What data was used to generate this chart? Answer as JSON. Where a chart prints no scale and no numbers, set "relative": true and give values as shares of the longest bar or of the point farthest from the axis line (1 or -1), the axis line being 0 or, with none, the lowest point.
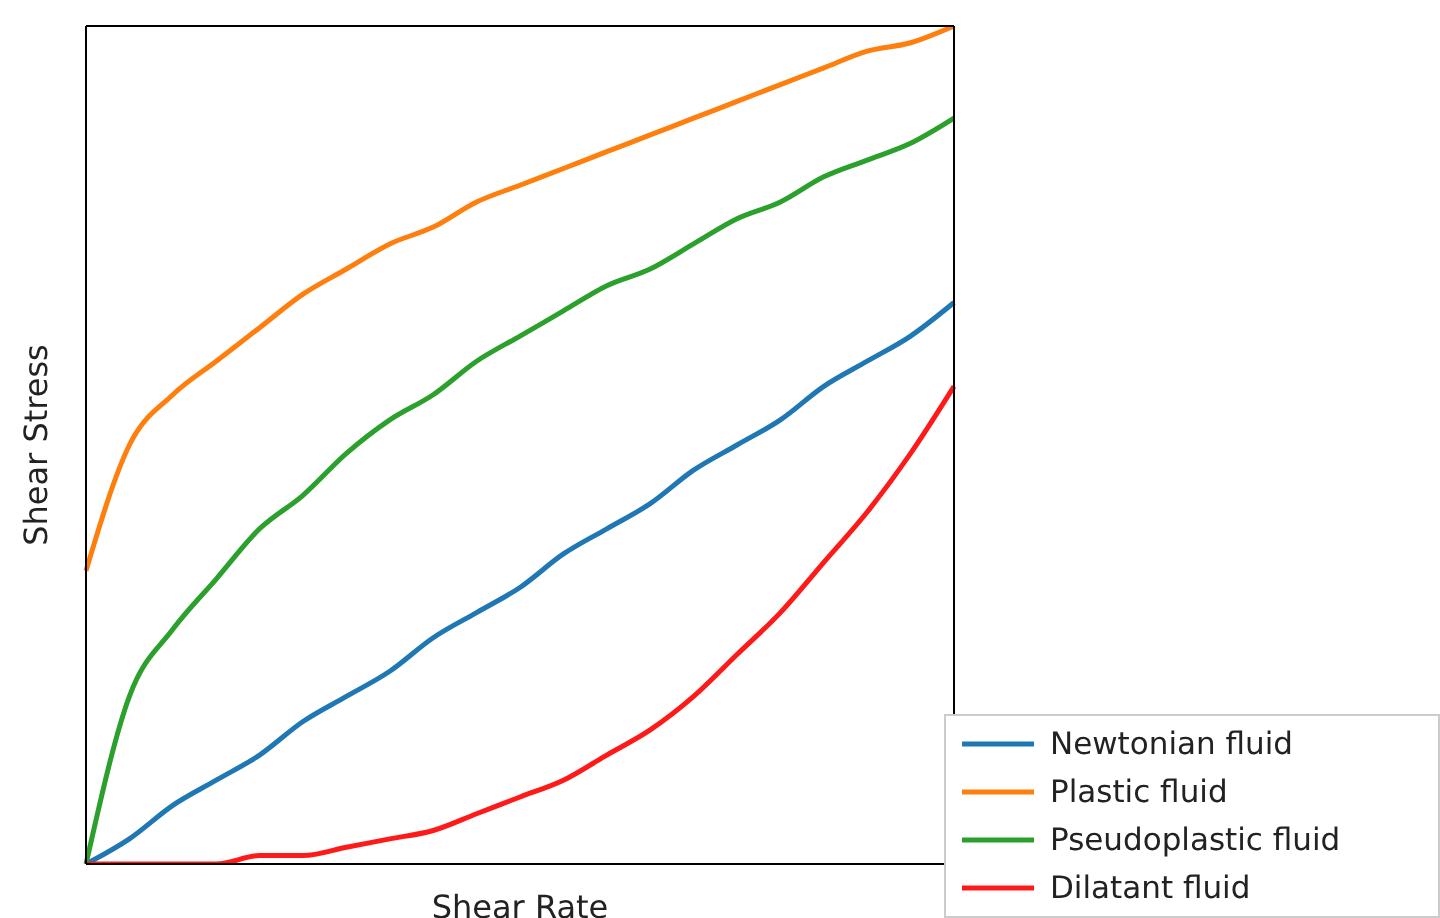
{
  "chart_data": {
    "type": "line",
    "relative": true,
    "xlabel": "Shear Rate",
    "ylabel": "Shear Stress",
    "legend": "bottom right",
    "marker": "none",
    "line_style": "solid",
    "categories": [
      null,
      null,
      null,
      null,
      null,
      null,
      null,
      null,
      null,
      null,
      null,
      null,
      null,
      null,
      null,
      null,
      null,
      null,
      null,
      null,
      null
    ],
    "series": [
      {
        "name": "Newtonian fluid",
        "color": "#1f77b4",
        "values": [
          0,
          0.03,
          0.07,
          0.1,
          0.13,
          0.17,
          0.2,
          0.23,
          0.27,
          0.3,
          0.33,
          0.37,
          0.4,
          0.43,
          0.47,
          0.5,
          0.53,
          0.57,
          0.6,
          0.63,
          0.67
        ]
      },
      {
        "name": "Plastic fluid",
        "color": "#ff7f0e",
        "values": [
          0.35,
          0.5,
          0.56,
          0.6,
          0.64,
          0.68,
          0.71,
          0.74,
          0.76,
          0.79,
          0.81,
          0.83,
          0.85,
          0.87,
          0.89,
          0.91,
          0.93,
          0.95,
          0.97,
          0.98,
          1
        ]
      },
      {
        "name": "Pseudoplastic fluid",
        "color": "#2ca02c",
        "values": [
          0,
          0.2,
          0.28,
          0.34,
          0.4,
          0.44,
          0.49,
          0.53,
          0.56,
          0.6,
          0.63,
          0.66,
          0.69,
          0.71,
          0.74,
          0.77,
          0.79,
          0.82,
          0.84,
          0.86,
          0.89
        ]
      },
      {
        "name": "Dilatant fluid",
        "color": "#ff1a1a",
        "values": [
          0,
          0,
          0,
          0,
          0.01,
          0.01,
          0.02,
          0.03,
          0.04,
          0.06,
          0.08,
          0.1,
          0.13,
          0.16,
          0.2,
          0.25,
          0.3,
          0.36,
          0.42,
          0.49,
          0.57
        ]
      }
    ]
  }
}
